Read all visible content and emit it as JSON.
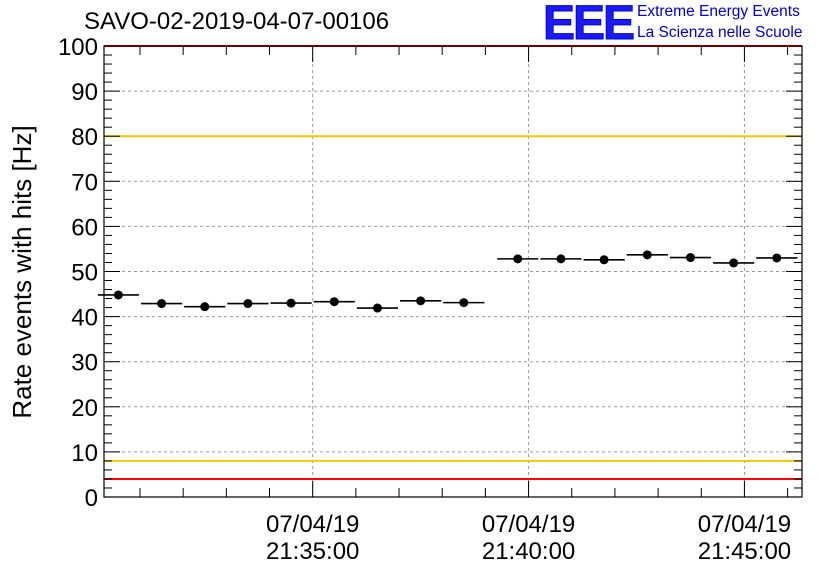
{
  "header": {
    "title": "SAVO-02-2019-04-07-00106",
    "logo_text": "EEE",
    "org_line1": "Extreme Energy Events",
    "org_line2": "La Scienza nelle Scuole"
  },
  "chart_data": {
    "type": "scatter",
    "title": "SAVO-02-2019-04-07-00106",
    "xlabel": "",
    "ylabel": "Rate events with hits [Hz]",
    "ylim": [
      0,
      100
    ],
    "y_ticks": [
      "0",
      "10",
      "20",
      "30",
      "40",
      "50",
      "60",
      "70",
      "80",
      "90",
      "100"
    ],
    "x_tick_labels": [
      {
        "date": "07/04/19",
        "time": "21:35:00"
      },
      {
        "date": "07/04/19",
        "time": "21:40:00"
      },
      {
        "date": "07/04/19",
        "time": "21:45:00"
      }
    ],
    "xlim": [
      "21:30:10",
      "21:46:20"
    ],
    "grid": true,
    "bin_width_seconds": 60,
    "series": [
      {
        "x": [
          "21:30:30",
          "21:31:30",
          "21:32:30",
          "21:33:30",
          "21:34:30",
          "21:35:30",
          "21:36:30",
          "21:37:30",
          "21:38:30",
          "21:39:45",
          "21:40:45",
          "21:41:45",
          "21:42:45",
          "21:43:45",
          "21:44:45",
          "21:45:45"
        ],
        "y": [
          44.8,
          42.9,
          42.2,
          42.9,
          43.0,
          43.3,
          41.9,
          43.5,
          43.1,
          52.8,
          52.8,
          52.6,
          53.7,
          53.1,
          51.9,
          53.0
        ]
      }
    ],
    "reference_lines": [
      {
        "y": 100,
        "color": "#ff0000"
      },
      {
        "y": 80,
        "color": "#f0c800"
      },
      {
        "y": 8,
        "color": "#f0c800"
      },
      {
        "y": 4,
        "color": "#ff0000"
      }
    ]
  }
}
